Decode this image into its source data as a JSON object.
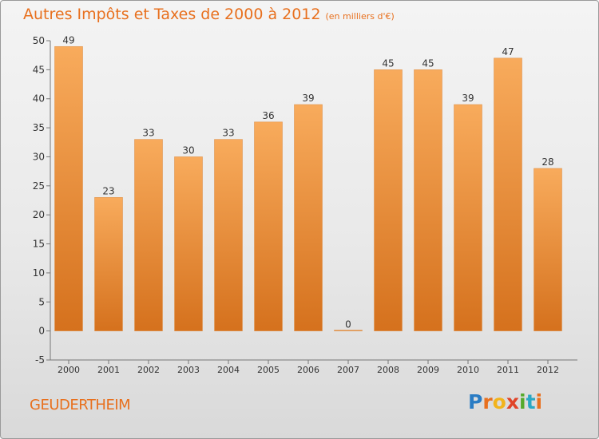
{
  "header": {
    "title": "Autres Impôts et Taxes de 2000 à 2012",
    "unit": "(en milliers d'€)"
  },
  "footer": {
    "place": "GEUDERTHEIM",
    "brand": "Proxiti"
  },
  "colors": {
    "accent": "#e8701e",
    "bar_light": "#f7a95a",
    "bar_dark": "#d7731f"
  },
  "chart_data": {
    "type": "bar",
    "title": "Autres Impôts et Taxes de 2000 à 2012",
    "subtitle": "(en milliers d'€)",
    "xlabel": "",
    "ylabel": "",
    "categories": [
      "2000",
      "2001",
      "2002",
      "2003",
      "2004",
      "2005",
      "2006",
      "2007",
      "2008",
      "2009",
      "2010",
      "2011",
      "2012"
    ],
    "values": [
      49,
      23,
      33,
      30,
      33,
      36,
      39,
      0,
      45,
      45,
      39,
      47,
      28
    ],
    "ylim": [
      -5,
      50
    ],
    "yticks": [
      -5,
      0,
      5,
      10,
      15,
      20,
      25,
      30,
      35,
      40,
      45,
      50
    ],
    "grid": false,
    "data_labels": true
  }
}
